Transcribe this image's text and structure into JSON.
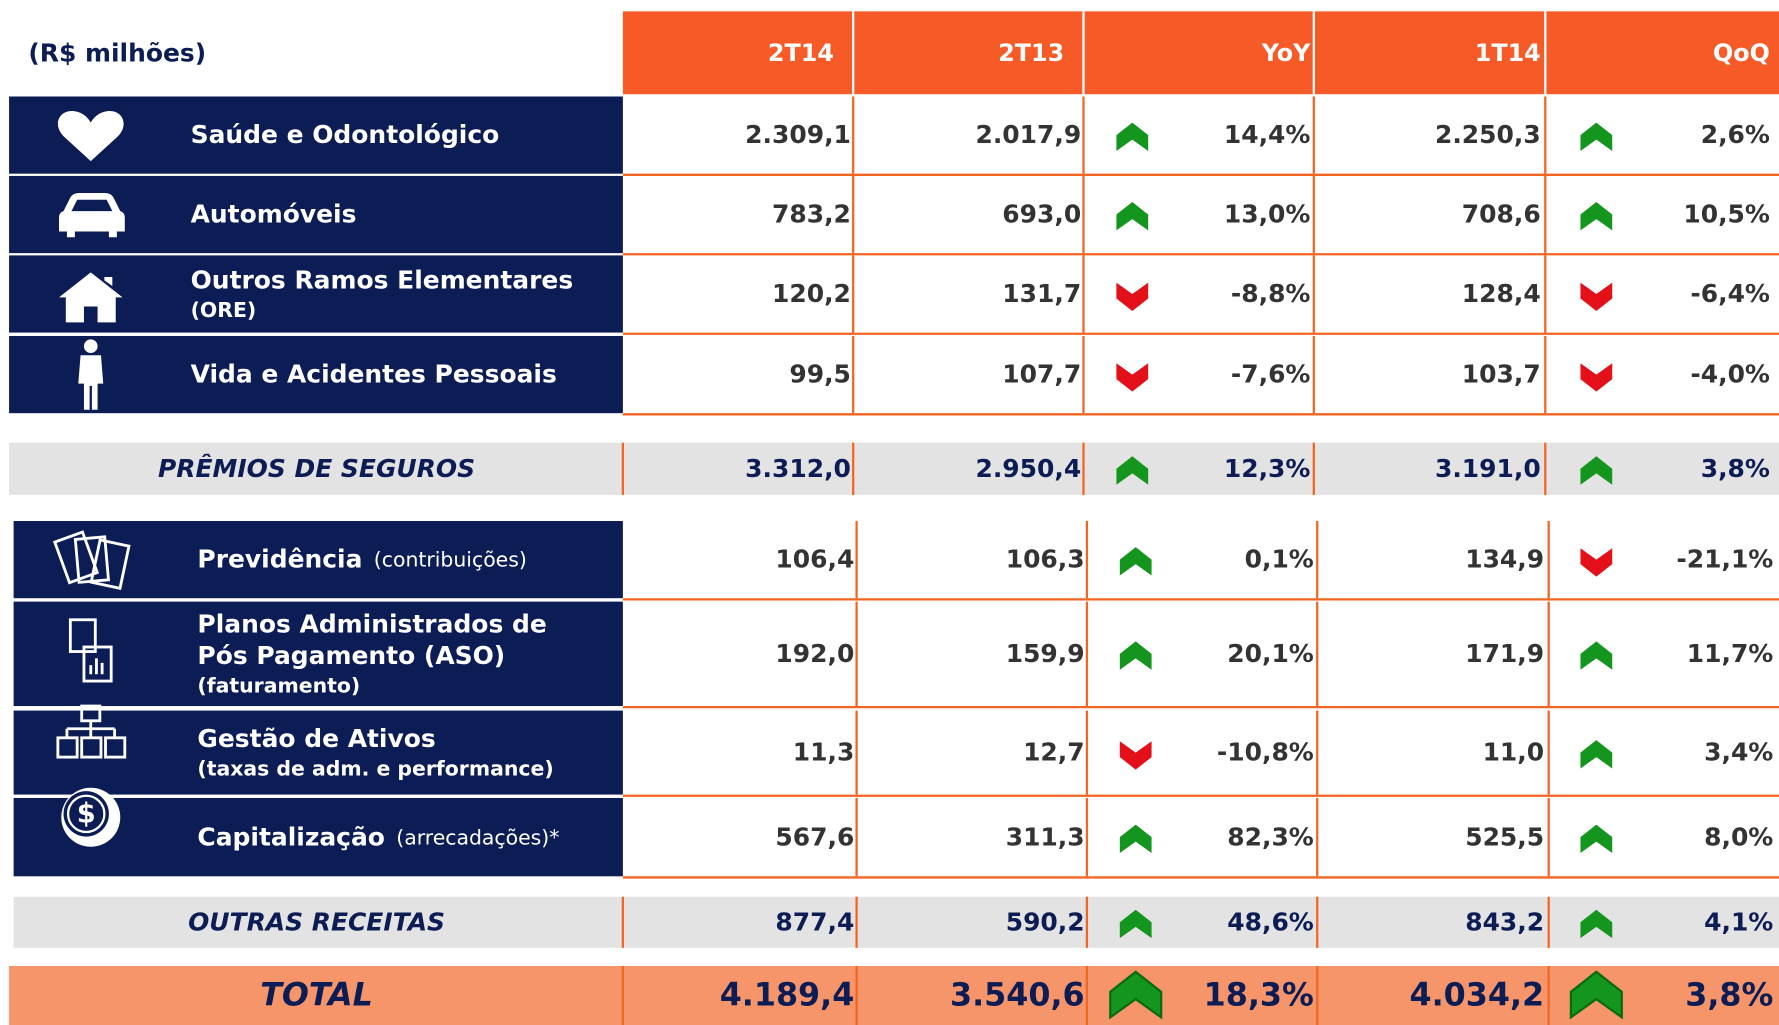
{
  "header": {
    "unit": "(R$ milhões)",
    "columns": [
      "2T14",
      "2T13",
      "YoY",
      "1T14",
      "QoQ"
    ]
  },
  "insurance": [
    {
      "label": [
        "Saúde e Odontológico"
      ],
      "values": [
        "2.309,1",
        "2.017,9",
        "14,4%",
        "2.250,3",
        "2,6%"
      ]
    },
    {
      "label": [
        "Automóveis"
      ],
      "values": [
        "783,2",
        "693,0",
        "13,0%",
        "708,6",
        "10,5%"
      ]
    },
    {
      "label": [
        "Outros Ramos Elementares"
      ],
      "note": "(ORE)",
      "values": [
        "120,2",
        "131,7",
        "-8,8%",
        "128,4",
        "-6,4%"
      ]
    },
    {
      "label": [
        "Vida e Acidentes Pessoais"
      ],
      "values": [
        "99,5",
        "107,7",
        "-7,6%",
        "103,7",
        "-4,0%"
      ]
    }
  ],
  "insurance_total": {
    "label": "PRÊMIOS DE SEGUROS",
    "values": [
      "3.312,0",
      "2.950,4",
      "12,3%",
      "3.191,0",
      "3,8%"
    ]
  },
  "other": [
    {
      "label": [
        "Previdência"
      ],
      "inline_note": "(contribuições)",
      "values": [
        "106,4",
        "106,3",
        "0,1%",
        "134,9",
        "-21,1%"
      ]
    },
    {
      "label": [
        "Planos Administrados de",
        "Pós Pagamento (ASO)"
      ],
      "note": "(faturamento)",
      "values": [
        "192,0",
        "159,9",
        "20,1%",
        "171,9",
        "11,7%"
      ]
    },
    {
      "label": [
        "Gestão de Ativos"
      ],
      "note": "(taxas de adm. e performance)",
      "values": [
        "11,3",
        "12,7",
        "-10,8%",
        "11,0",
        "3,4%"
      ]
    },
    {
      "label": [
        "Capitalização"
      ],
      "inline_note": "(arrecadações)*",
      "values": [
        "567,6",
        "311,3",
        "82,3%",
        "525,5",
        "8,0%"
      ]
    }
  ],
  "other_total": {
    "label": "OUTRAS RECEITAS",
    "values": [
      "877,4",
      "590,2",
      "48,6%",
      "843,2",
      "4,1%"
    ]
  },
  "total": {
    "label": "TOTAL",
    "values": [
      "4.189,4",
      "3.540,6",
      "18,3%",
      "4.034,2",
      "3,8%"
    ]
  }
}
